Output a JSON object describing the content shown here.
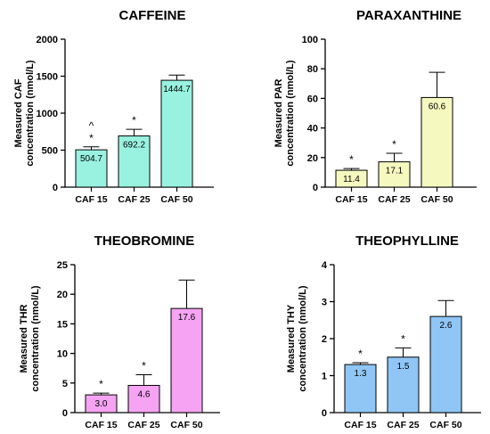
{
  "chart_data": [
    {
      "type": "bar",
      "title": "CAFFEINE",
      "ylabel_line1": "Measured CAF",
      "ylabel_line2": "concentration (nmol/L)",
      "categories": [
        "CAF 15",
        "CAF 25",
        "CAF 50"
      ],
      "values": [
        504.7,
        692.2,
        1444.7
      ],
      "value_labels": [
        "504.7",
        "692.2",
        "1444.7"
      ],
      "errors": [
        40,
        90,
        70
      ],
      "annotations": [
        [
          "^",
          "*"
        ],
        [
          "*"
        ],
        []
      ],
      "ylim": [
        0,
        2000
      ],
      "yticks": [
        0,
        500,
        1000,
        1500,
        2000
      ],
      "color": "#99f2e0"
    },
    {
      "type": "bar",
      "title": "PARAXANTHINE",
      "ylabel_line1": "Measured PAR",
      "ylabel_line2": "concentration (nmol/L)",
      "categories": [
        "CAF 15",
        "CAF 25",
        "CAF 50"
      ],
      "values": [
        11.4,
        17.1,
        60.6
      ],
      "value_labels": [
        "11.4",
        "17.1",
        "60.6"
      ],
      "errors": [
        1.2,
        5.8,
        17.0
      ],
      "annotations": [
        [
          "*"
        ],
        [
          "*"
        ],
        []
      ],
      "ylim": [
        0,
        100
      ],
      "yticks": [
        0,
        20,
        40,
        60,
        80,
        100
      ],
      "color": "#f5f9bf"
    },
    {
      "type": "bar",
      "title": "THEOBROMINE",
      "ylabel_line1": "Measured THR",
      "ylabel_line2": "concentration (nmol/L)",
      "categories": [
        "CAF 15",
        "CAF 25",
        "CAF 50"
      ],
      "values": [
        3.0,
        4.6,
        17.6
      ],
      "value_labels": [
        "3.0",
        "4.6",
        "17.6"
      ],
      "errors": [
        0.3,
        1.8,
        4.8
      ],
      "annotations": [
        [
          "*"
        ],
        [
          "*"
        ],
        []
      ],
      "ylim": [
        0,
        25
      ],
      "yticks": [
        0,
        5,
        10,
        15,
        20,
        25
      ],
      "color": "#f5a3f2"
    },
    {
      "type": "bar",
      "title": "THEOPHYLLINE",
      "ylabel_line1": "Measured THY",
      "ylabel_line2": "concentration (nmol/L)",
      "categories": [
        "CAF 15",
        "CAF 25",
        "CAF 50"
      ],
      "values": [
        1.3,
        1.5,
        2.6
      ],
      "value_labels": [
        "1.3",
        "1.5",
        "2.6"
      ],
      "errors": [
        0.05,
        0.25,
        0.43
      ],
      "annotations": [
        [
          "*"
        ],
        [
          "*"
        ],
        []
      ],
      "ylim": [
        0,
        4
      ],
      "yticks": [
        0,
        1,
        2,
        3,
        4
      ],
      "color": "#8fc6f5"
    }
  ]
}
